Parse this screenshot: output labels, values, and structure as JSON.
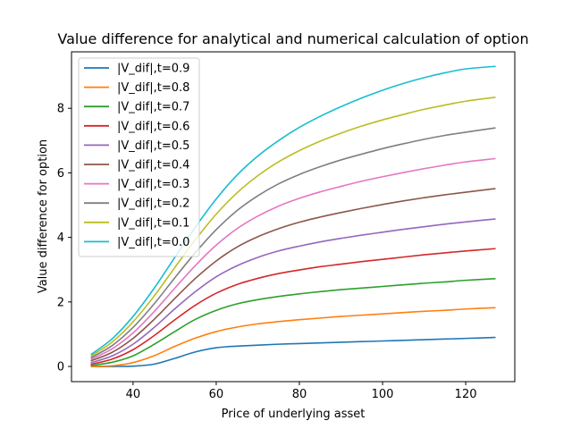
{
  "chart_data": {
    "type": "line",
    "title": "Value difference for analytical and numerical calculation of option",
    "xlabel": "Price of underlying asset",
    "ylabel": "Value difference for option",
    "xlim": [
      25.2,
      131.8
    ],
    "ylim": [
      -0.47,
      9.75
    ],
    "xticks": [
      40,
      60,
      80,
      100,
      120
    ],
    "yticks": [
      0,
      2,
      4,
      6,
      8
    ],
    "grid": false,
    "legend_position": "top-left",
    "x": [
      30,
      35,
      40,
      45,
      50,
      55,
      60,
      65,
      70,
      75,
      80,
      85,
      90,
      95,
      100,
      105,
      110,
      115,
      120,
      127
    ],
    "series": [
      {
        "name": "|V_dif|,t=0.9",
        "color": "#1f77b4",
        "values": [
          0.0,
          0.0,
          0.01,
          0.07,
          0.25,
          0.45,
          0.58,
          0.63,
          0.66,
          0.69,
          0.71,
          0.73,
          0.75,
          0.77,
          0.79,
          0.81,
          0.83,
          0.85,
          0.87,
          0.9
        ]
      },
      {
        "name": "|V_dif|,t=0.8",
        "color": "#ff7f0e",
        "values": [
          0.0,
          0.02,
          0.12,
          0.33,
          0.62,
          0.88,
          1.08,
          1.22,
          1.32,
          1.39,
          1.45,
          1.5,
          1.55,
          1.59,
          1.63,
          1.67,
          1.71,
          1.74,
          1.78,
          1.82
        ]
      },
      {
        "name": "|V_dif|,t=0.7",
        "color": "#2ca02c",
        "values": [
          0.03,
          0.13,
          0.33,
          0.68,
          1.08,
          1.46,
          1.74,
          1.94,
          2.07,
          2.17,
          2.25,
          2.32,
          2.38,
          2.43,
          2.48,
          2.53,
          2.58,
          2.62,
          2.67,
          2.72
        ]
      },
      {
        "name": "|V_dif|,t=0.6",
        "color": "#d62728",
        "values": [
          0.07,
          0.23,
          0.52,
          0.95,
          1.44,
          1.9,
          2.27,
          2.54,
          2.73,
          2.88,
          2.99,
          3.09,
          3.17,
          3.25,
          3.32,
          3.39,
          3.46,
          3.52,
          3.58,
          3.65
        ]
      },
      {
        "name": "|V_dif|,t=0.5",
        "color": "#9467bd",
        "values": [
          0.12,
          0.33,
          0.69,
          1.2,
          1.78,
          2.32,
          2.78,
          3.12,
          3.38,
          3.58,
          3.73,
          3.86,
          3.97,
          4.07,
          4.16,
          4.25,
          4.33,
          4.41,
          4.48,
          4.57
        ]
      },
      {
        "name": "|V_dif|,t=0.4",
        "color": "#8c564b",
        "values": [
          0.18,
          0.44,
          0.87,
          1.45,
          2.1,
          2.73,
          3.27,
          3.7,
          4.02,
          4.27,
          4.47,
          4.63,
          4.77,
          4.9,
          5.02,
          5.13,
          5.23,
          5.32,
          5.4,
          5.51
        ]
      },
      {
        "name": "|V_dif|,t=0.3",
        "color": "#e377c2",
        "values": [
          0.23,
          0.55,
          1.04,
          1.69,
          2.42,
          3.13,
          3.76,
          4.27,
          4.66,
          4.97,
          5.21,
          5.41,
          5.58,
          5.74,
          5.88,
          6.01,
          6.13,
          6.24,
          6.34,
          6.44
        ]
      },
      {
        "name": "|V_dif|,t=0.2",
        "color": "#7f7f7f",
        "values": [
          0.28,
          0.65,
          1.21,
          1.93,
          2.74,
          3.53,
          4.24,
          4.83,
          5.29,
          5.66,
          5.95,
          6.19,
          6.4,
          6.58,
          6.75,
          6.9,
          7.04,
          7.16,
          7.26,
          7.39
        ]
      },
      {
        "name": "|V_dif|,t=0.1",
        "color": "#bcbd22",
        "values": [
          0.33,
          0.76,
          1.38,
          2.17,
          3.06,
          3.93,
          4.72,
          5.38,
          5.91,
          6.34,
          6.69,
          6.98,
          7.23,
          7.45,
          7.64,
          7.81,
          7.97,
          8.1,
          8.22,
          8.34
        ]
      },
      {
        "name": "|V_dif|,t=0.0",
        "color": "#17becf",
        "values": [
          0.38,
          0.86,
          1.55,
          2.41,
          3.37,
          4.32,
          5.19,
          5.93,
          6.52,
          7.0,
          7.41,
          7.75,
          8.05,
          8.32,
          8.56,
          8.77,
          8.95,
          9.1,
          9.22,
          9.3
        ]
      }
    ]
  }
}
